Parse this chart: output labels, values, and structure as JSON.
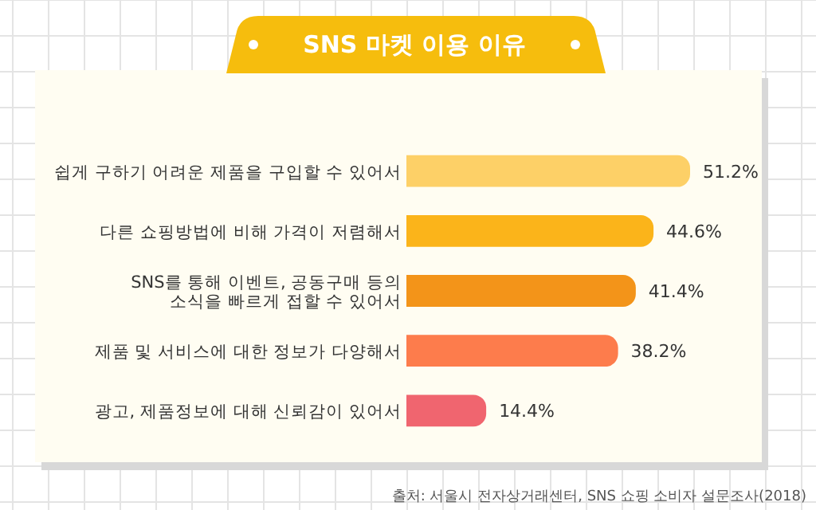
{
  "chart_data": {
    "type": "bar",
    "orientation": "horizontal",
    "title": "SNS 마켓 이용 이유",
    "categories": [
      "쉽게 구하기 어려운 제품을 구입할 수 있어서",
      "다른 쇼핑방법에 비해 가격이 저렴해서",
      "SNS를 통해 이벤트, 공동구매 등의\n소식을 빠르게 접할 수 있어서",
      "제품 및 서비스에 대한 정보가 다양해서",
      "광고, 제품정보에 대해 신뢰감이 있어서"
    ],
    "values": [
      51.2,
      44.6,
      41.4,
      38.2,
      14.4
    ],
    "colors": [
      "#fdd067",
      "#fbb41a",
      "#f39419",
      "#fd7c4c",
      "#f0656f"
    ],
    "value_labels": [
      "51.2%",
      "44.6%",
      "41.4%",
      "38.2%",
      "14.4%"
    ],
    "annotations": [
      "출처: 서울시 전자상거래센터, SNS 쇼핑 소비자 설문조사(2018)"
    ]
  }
}
